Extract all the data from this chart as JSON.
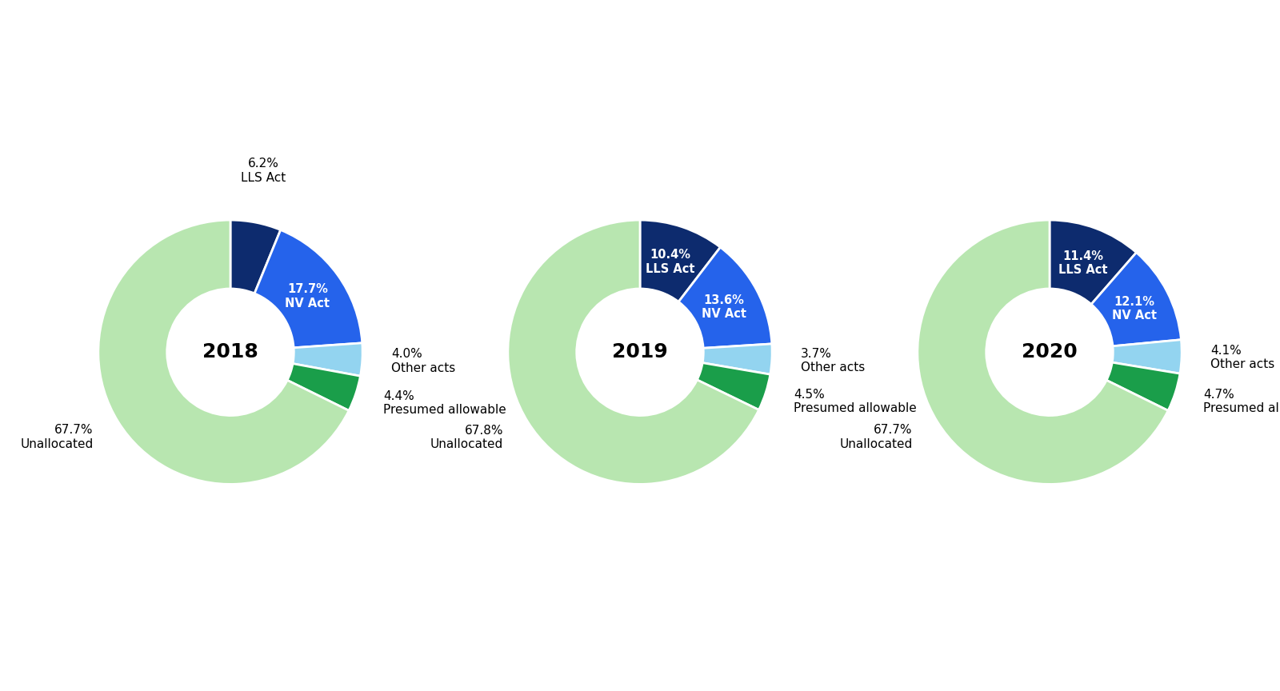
{
  "years": [
    "2018",
    "2019",
    "2020"
  ],
  "categories": [
    "LLS Act",
    "NV Act",
    "Other acts",
    "Presumed allowable",
    "Unallocated"
  ],
  "colors": [
    "#0d2b6e",
    "#2563eb",
    "#93d4f0",
    "#1a9e4a",
    "#b8e6b0"
  ],
  "label_colors": [
    "white",
    "white",
    "black",
    "black",
    "black"
  ],
  "data": [
    [
      6.2,
      17.7,
      4.0,
      4.4,
      67.7
    ],
    [
      10.4,
      13.6,
      3.7,
      4.5,
      67.8
    ],
    [
      11.4,
      12.1,
      4.1,
      4.7,
      67.7
    ]
  ],
  "center_labels": [
    "2018",
    "2019",
    "2020"
  ],
  "background_color": "#ffffff",
  "start_angle": 90,
  "font_size_inner": 10.5,
  "font_size_outer": 11,
  "font_size_center": 18,
  "inner_label_r": 0.72,
  "outer_label_r": 1.22,
  "donut_width": 0.52
}
